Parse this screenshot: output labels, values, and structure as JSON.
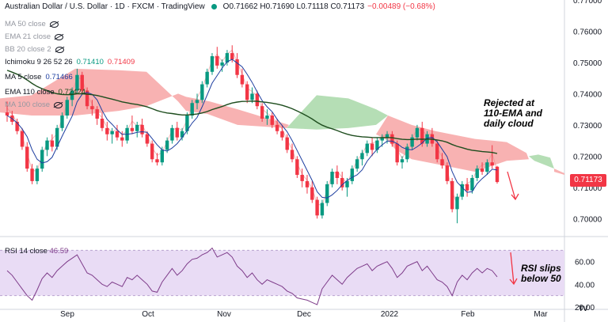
{
  "header": {
    "symbol": "Australian Dollar / U.S. Dollar · 1D · FXCM · TradingView",
    "ohlc": "O0.71662 H0.71690 L0.71118 C0.71173",
    "change": "−0.00489 (−0.68%)"
  },
  "legend": {
    "ma50": "MA 50 close",
    "ema21": "EMA 21 close",
    "bb": "BB 20 close 2",
    "ichimoku_label": "Ichimoku 9 26 52 26",
    "ichimoku_v1": "0.71410",
    "ichimoku_v2": "0.71409",
    "ma5_label": "MA 5 close",
    "ma5_value": "0.71466",
    "ema110_label": "EMA 110 close",
    "ema110_value": "0.72424",
    "ma100_label": "MA 100 close"
  },
  "rsi": {
    "label": "RSI 14 close",
    "value": "46.59"
  },
  "price_axis": [
    "0.77000",
    "0.76000",
    "0.75000",
    "0.74000",
    "0.73000",
    "0.72000",
    "0.71000",
    "0.70000"
  ],
  "rsi_axis": [
    "60.00",
    "40.00",
    "20.00"
  ],
  "time_axis": [
    "Sep",
    "Oct",
    "Nov",
    "Dec",
    "2022",
    "Feb",
    "Mar"
  ],
  "last_price": "0.71173",
  "notes": {
    "price_note": [
      "Rejected at",
      "110-EMA and",
      "daily cloud"
    ],
    "rsi_note": [
      "RSI slips",
      "below 50"
    ]
  },
  "logo": "TV",
  "colors": {
    "up": "#089981",
    "down": "#f23645",
    "cloud_red": "#f7a4a4",
    "cloud_green": "#a8d8a8",
    "ema110": "#1e4d1e",
    "ma5": "#1e3fa0",
    "rsi_line": "#7e3c8a",
    "rsi_band": "#e9dcf5"
  },
  "chart_data": {
    "type": "candlestick",
    "price_range": [
      0.695,
      0.77
    ],
    "candles": [
      [
        0.734,
        0.7375,
        0.731,
        0.733
      ],
      [
        0.733,
        0.7345,
        0.73,
        0.731
      ],
      [
        0.731,
        0.732,
        0.727,
        0.728
      ],
      [
        0.728,
        0.729,
        0.722,
        0.723
      ],
      [
        0.723,
        0.7245,
        0.715,
        0.716
      ],
      [
        0.716,
        0.7175,
        0.711,
        0.712
      ],
      [
        0.712,
        0.717,
        0.711,
        0.716
      ],
      [
        0.716,
        0.723,
        0.715,
        0.722
      ],
      [
        0.722,
        0.726,
        0.72,
        0.725
      ],
      [
        0.725,
        0.727,
        0.7215,
        0.723
      ],
      [
        0.723,
        0.73,
        0.722,
        0.729
      ],
      [
        0.729,
        0.734,
        0.728,
        0.733
      ],
      [
        0.733,
        0.739,
        0.732,
        0.738
      ],
      [
        0.738,
        0.742,
        0.736,
        0.741
      ],
      [
        0.741,
        0.748,
        0.74,
        0.746
      ],
      [
        0.746,
        0.747,
        0.74,
        0.741
      ],
      [
        0.741,
        0.742,
        0.735,
        0.736
      ],
      [
        0.736,
        0.738,
        0.733,
        0.735
      ],
      [
        0.735,
        0.736,
        0.73,
        0.732
      ],
      [
        0.732,
        0.734,
        0.728,
        0.729
      ],
      [
        0.729,
        0.731,
        0.725,
        0.727
      ],
      [
        0.727,
        0.729,
        0.724,
        0.728
      ],
      [
        0.728,
        0.73,
        0.725,
        0.726
      ],
      [
        0.726,
        0.728,
        0.723,
        0.725
      ],
      [
        0.725,
        0.73,
        0.724,
        0.729
      ],
      [
        0.729,
        0.733,
        0.727,
        0.728
      ],
      [
        0.728,
        0.731,
        0.726,
        0.73
      ],
      [
        0.73,
        0.732,
        0.726,
        0.727
      ],
      [
        0.727,
        0.728,
        0.723,
        0.724
      ],
      [
        0.724,
        0.725,
        0.718,
        0.719
      ],
      [
        0.719,
        0.721,
        0.717,
        0.718
      ],
      [
        0.718,
        0.723,
        0.717,
        0.722
      ],
      [
        0.722,
        0.726,
        0.721,
        0.725
      ],
      [
        0.725,
        0.73,
        0.724,
        0.729
      ],
      [
        0.729,
        0.731,
        0.725,
        0.726
      ],
      [
        0.726,
        0.729,
        0.725,
        0.728
      ],
      [
        0.728,
        0.734,
        0.727,
        0.733
      ],
      [
        0.733,
        0.738,
        0.732,
        0.737
      ],
      [
        0.737,
        0.74,
        0.735,
        0.738
      ],
      [
        0.738,
        0.744,
        0.737,
        0.743
      ],
      [
        0.743,
        0.748,
        0.742,
        0.747
      ],
      [
        0.747,
        0.753,
        0.746,
        0.752
      ],
      [
        0.752,
        0.755,
        0.748,
        0.749
      ],
      [
        0.749,
        0.751,
        0.747,
        0.75
      ],
      [
        0.75,
        0.754,
        0.749,
        0.753
      ],
      [
        0.753,
        0.7555,
        0.75,
        0.751
      ],
      [
        0.751,
        0.753,
        0.745,
        0.746
      ],
      [
        0.746,
        0.748,
        0.742,
        0.743
      ],
      [
        0.743,
        0.744,
        0.737,
        0.738
      ],
      [
        0.738,
        0.742,
        0.737,
        0.74
      ],
      [
        0.74,
        0.741,
        0.735,
        0.736
      ],
      [
        0.736,
        0.737,
        0.731,
        0.732
      ],
      [
        0.732,
        0.735,
        0.73,
        0.733
      ],
      [
        0.733,
        0.734,
        0.729,
        0.73
      ],
      [
        0.73,
        0.732,
        0.727,
        0.728
      ],
      [
        0.728,
        0.73,
        0.725,
        0.726
      ],
      [
        0.726,
        0.727,
        0.721,
        0.722
      ],
      [
        0.722,
        0.724,
        0.718,
        0.719
      ],
      [
        0.719,
        0.72,
        0.713,
        0.714
      ],
      [
        0.714,
        0.716,
        0.71,
        0.712
      ],
      [
        0.712,
        0.714,
        0.708,
        0.71
      ],
      [
        0.71,
        0.712,
        0.705,
        0.706
      ],
      [
        0.706,
        0.707,
        0.7,
        0.701
      ],
      [
        0.701,
        0.706,
        0.7,
        0.705
      ],
      [
        0.705,
        0.712,
        0.704,
        0.711
      ],
      [
        0.711,
        0.716,
        0.71,
        0.715
      ],
      [
        0.715,
        0.717,
        0.711,
        0.713
      ],
      [
        0.713,
        0.715,
        0.709,
        0.71
      ],
      [
        0.71,
        0.713,
        0.707,
        0.712
      ],
      [
        0.712,
        0.717,
        0.711,
        0.716
      ],
      [
        0.716,
        0.72,
        0.715,
        0.719
      ],
      [
        0.719,
        0.722,
        0.717,
        0.721
      ],
      [
        0.721,
        0.725,
        0.72,
        0.724
      ],
      [
        0.724,
        0.726,
        0.72,
        0.722
      ],
      [
        0.722,
        0.726,
        0.721,
        0.725
      ],
      [
        0.725,
        0.727,
        0.723,
        0.726
      ],
      [
        0.726,
        0.728,
        0.724,
        0.727
      ],
      [
        0.727,
        0.728,
        0.723,
        0.724
      ],
      [
        0.724,
        0.725,
        0.717,
        0.718
      ],
      [
        0.718,
        0.72,
        0.716,
        0.719
      ],
      [
        0.719,
        0.724,
        0.718,
        0.723
      ],
      [
        0.723,
        0.727,
        0.722,
        0.726
      ],
      [
        0.726,
        0.73,
        0.725,
        0.729
      ],
      [
        0.729,
        0.731,
        0.723,
        0.724
      ],
      [
        0.724,
        0.728,
        0.723,
        0.727
      ],
      [
        0.727,
        0.729,
        0.723,
        0.724
      ],
      [
        0.724,
        0.725,
        0.718,
        0.719
      ],
      [
        0.719,
        0.721,
        0.716,
        0.717
      ],
      [
        0.717,
        0.718,
        0.711,
        0.712
      ],
      [
        0.712,
        0.713,
        0.702,
        0.703
      ],
      [
        0.703,
        0.708,
        0.6985,
        0.707
      ],
      [
        0.707,
        0.712,
        0.706,
        0.711
      ],
      [
        0.711,
        0.713,
        0.707,
        0.709
      ],
      [
        0.709,
        0.714,
        0.708,
        0.713
      ],
      [
        0.713,
        0.717,
        0.712,
        0.716
      ],
      [
        0.716,
        0.718,
        0.714,
        0.715
      ],
      [
        0.715,
        0.719,
        0.714,
        0.718
      ],
      [
        0.718,
        0.7235,
        0.716,
        0.717
      ],
      [
        0.7166,
        0.7169,
        0.7112,
        0.7117
      ]
    ],
    "rsi_range": [
      20,
      80
    ],
    "rsi_values": [
      52,
      48,
      42,
      36,
      30,
      26,
      35,
      45,
      50,
      46,
      52,
      56,
      60,
      63,
      66,
      58,
      50,
      48,
      44,
      40,
      38,
      42,
      40,
      38,
      46,
      44,
      48,
      44,
      40,
      34,
      33,
      42,
      48,
      54,
      48,
      52,
      58,
      62,
      63,
      66,
      68,
      72,
      64,
      66,
      68,
      64,
      56,
      52,
      46,
      50,
      44,
      40,
      44,
      42,
      40,
      38,
      34,
      32,
      28,
      27,
      26,
      24,
      22,
      36,
      42,
      48,
      44,
      40,
      46,
      50,
      54,
      56,
      58,
      52,
      56,
      58,
      60,
      54,
      46,
      50,
      56,
      58,
      60,
      52,
      56,
      50,
      44,
      42,
      38,
      30,
      42,
      48,
      44,
      50,
      54,
      50,
      54,
      52,
      46.59
    ]
  }
}
